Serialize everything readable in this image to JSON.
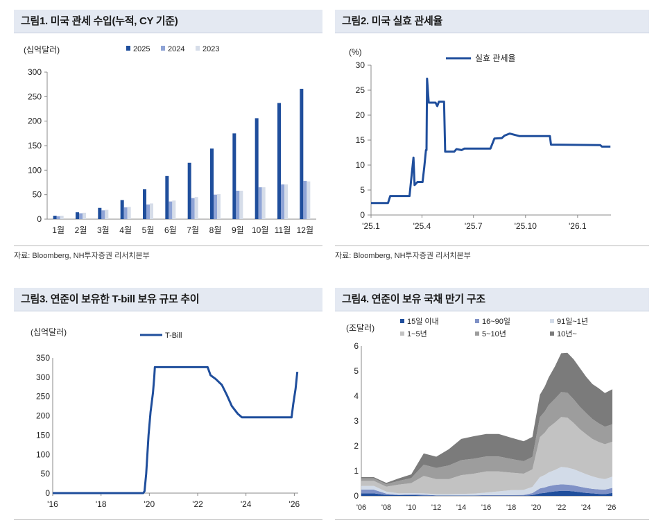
{
  "colors": {
    "dark_blue": "#1f4e9c",
    "mid_blue": "#8fa4d6",
    "light_blue": "#d6dde9",
    "bar_2025": "#1f4e9c",
    "bar_2024": "#8fa4d6",
    "bar_2023": "#d6dde9"
  },
  "fig1": {
    "title": "그림1. 미국 관세 수입(누적, CY 기준)",
    "source": "자료: Bloomberg, NH투자증권 리서치본부",
    "chart_data": {
      "type": "bar",
      "ylabel": "(십억달러)",
      "ylim": [
        0,
        300
      ],
      "yticks": [
        "0",
        "50",
        "100",
        "150",
        "200",
        "250",
        "300"
      ],
      "categories": [
        "1월",
        "2월",
        "3월",
        "4월",
        "5월",
        "6월",
        "7월",
        "8월",
        "9월",
        "10월",
        "11월",
        "12월"
      ],
      "series": [
        {
          "name": "2025",
          "values": [
            7,
            14,
            23,
            39,
            61,
            88,
            115,
            144,
            175,
            206,
            237,
            266
          ]
        },
        {
          "name": "2024",
          "values": [
            6,
            12,
            18,
            24,
            30,
            36,
            43,
            50,
            58,
            65,
            71,
            78
          ]
        },
        {
          "name": "2023",
          "values": [
            7,
            13,
            19,
            25,
            32,
            38,
            45,
            51,
            58,
            65,
            71,
            77
          ]
        }
      ],
      "legend": "top-center"
    }
  },
  "fig2": {
    "title": "그림2. 미국 실효 관세율",
    "source": "자료: Bloomberg, NH투자증권 리서치본부",
    "chart_data": {
      "type": "line",
      "ylabel": "(%)",
      "ylim": [
        0,
        30
      ],
      "yticks": [
        "0",
        "5",
        "10",
        "15",
        "20",
        "25",
        "30"
      ],
      "xticks": [
        "'25.1",
        "'25.4",
        "'25.7",
        "'25.10",
        "'26.1"
      ],
      "xlim": [
        "2025-01-01",
        "2026-03-01"
      ],
      "series": [
        {
          "name": "실효 관세율",
          "points": [
            [
              "2025-01-01",
              2.4
            ],
            [
              "2025-01-31",
              2.4
            ],
            [
              "2025-02-04",
              3.8
            ],
            [
              "2025-03-10",
              3.8
            ],
            [
              "2025-03-12",
              6.0
            ],
            [
              "2025-03-17",
              11.5
            ],
            [
              "2025-03-19",
              6.0
            ],
            [
              "2025-03-24",
              6.6
            ],
            [
              "2025-04-02",
              6.6
            ],
            [
              "2025-04-05",
              9.5
            ],
            [
              "2025-04-08",
              13.0
            ],
            [
              "2025-04-09",
              13.0
            ],
            [
              "2025-04-10",
              27.3
            ],
            [
              "2025-04-13",
              22.5
            ],
            [
              "2025-04-25",
              22.5
            ],
            [
              "2025-04-28",
              21.8
            ],
            [
              "2025-05-01",
              22.7
            ],
            [
              "2025-05-10",
              22.7
            ],
            [
              "2025-05-12",
              12.7
            ],
            [
              "2025-05-28",
              12.7
            ],
            [
              "2025-06-01",
              13.2
            ],
            [
              "2025-06-10",
              13.0
            ],
            [
              "2025-06-15",
              13.3
            ],
            [
              "2025-07-31",
              13.3
            ],
            [
              "2025-08-07",
              15.3
            ],
            [
              "2025-08-20",
              15.4
            ],
            [
              "2025-08-25",
              15.9
            ],
            [
              "2025-09-03",
              16.3
            ],
            [
              "2025-09-10",
              16.1
            ],
            [
              "2025-09-20",
              15.8
            ],
            [
              "2025-11-13",
              15.8
            ],
            [
              "2025-11-15",
              14.1
            ],
            [
              "2026-02-10",
              14.0
            ],
            [
              "2026-02-13",
              13.7
            ],
            [
              "2026-02-28",
              13.7
            ]
          ]
        }
      ],
      "legend": "top-center"
    }
  },
  "fig3": {
    "title": "그림3. 연준이 보유한 T-bill 보유 규모 추이",
    "chart_data": {
      "type": "line",
      "ylabel": "(십억달러)",
      "ylim": [
        0,
        350
      ],
      "yticks": [
        "0",
        "50",
        "100",
        "150",
        "200",
        "250",
        "300",
        "350"
      ],
      "xticks": [
        "'16",
        "'18",
        "'20",
        "'22",
        "'24",
        "'26"
      ],
      "xlim": [
        "2016-01-01",
        "2026-03-01"
      ],
      "series": [
        {
          "name": "T-Bill",
          "points": [
            [
              "2016-01-01",
              0
            ],
            [
              "2019-10-01",
              0
            ],
            [
              "2019-10-20",
              5
            ],
            [
              "2019-11-15",
              50
            ],
            [
              "2019-12-20",
              150
            ],
            [
              "2020-01-20",
              210
            ],
            [
              "2020-02-25",
              260
            ],
            [
              "2020-03-15",
              300
            ],
            [
              "2020-03-25",
              326
            ],
            [
              "2022-06-01",
              326
            ],
            [
              "2022-07-15",
              305
            ],
            [
              "2022-10-01",
              295
            ],
            [
              "2023-01-01",
              280
            ],
            [
              "2023-03-15",
              255
            ],
            [
              "2023-06-01",
              225
            ],
            [
              "2023-09-01",
              205
            ],
            [
              "2023-11-01",
              196
            ],
            [
              "2025-11-20",
              196
            ],
            [
              "2025-12-15",
              230
            ],
            [
              "2026-01-20",
              270
            ],
            [
              "2026-02-15",
              314
            ]
          ]
        }
      ],
      "legend": "top-center"
    }
  },
  "fig4": {
    "title": "그림4. 연준이 보유 국채 만기 구조",
    "chart_data": {
      "type": "area",
      "stacked": true,
      "ylabel": "(조달러)",
      "ylim": [
        0,
        6
      ],
      "yticks": [
        "0",
        "1",
        "2",
        "3",
        "4",
        "5",
        "6"
      ],
      "xticks": [
        "'06",
        "'08",
        "'10",
        "'12",
        "'14",
        "'16",
        "'18",
        "'20",
        "'22",
        "'24",
        "'26"
      ],
      "x": [
        2006,
        2007,
        2008,
        2009,
        2010,
        2011,
        2012,
        2013,
        2014,
        2015,
        2016,
        2017,
        2018,
        2019,
        2019.7,
        2020.3,
        2020.7,
        2021,
        2021.5,
        2022,
        2022.5,
        2023,
        2023.5,
        2024,
        2024.5,
        2025,
        2025.5,
        2026.1
      ],
      "series": [
        {
          "name": "15일 이내",
          "values": [
            0.1,
            0.1,
            0.04,
            0.03,
            0.03,
            0.02,
            0.01,
            0.01,
            0.01,
            0.01,
            0.01,
            0.01,
            0.01,
            0.01,
            0.03,
            0.1,
            0.12,
            0.15,
            0.18,
            0.2,
            0.2,
            0.18,
            0.15,
            0.12,
            0.1,
            0.08,
            0.07,
            0.12
          ]
        },
        {
          "name": "16~90일",
          "values": [
            0.15,
            0.15,
            0.05,
            0.02,
            0.03,
            0.03,
            0.01,
            0.01,
            0.01,
            0.01,
            0.02,
            0.02,
            0.02,
            0.03,
            0.08,
            0.2,
            0.22,
            0.24,
            0.26,
            0.26,
            0.25,
            0.24,
            0.22,
            0.2,
            0.18,
            0.18,
            0.18,
            0.2
          ]
        },
        {
          "name": "91일~1년",
          "values": [
            0.15,
            0.15,
            0.08,
            0.05,
            0.05,
            0.05,
            0.05,
            0.05,
            0.06,
            0.07,
            0.1,
            0.15,
            0.2,
            0.2,
            0.25,
            0.45,
            0.5,
            0.55,
            0.6,
            0.7,
            0.68,
            0.65,
            0.6,
            0.55,
            0.5,
            0.45,
            0.42,
            0.45
          ]
        },
        {
          "name": "1~5년",
          "values": [
            0.2,
            0.2,
            0.2,
            0.35,
            0.4,
            0.7,
            0.6,
            0.6,
            0.75,
            0.8,
            0.85,
            0.8,
            0.7,
            0.65,
            0.7,
            1.6,
            1.7,
            1.8,
            1.9,
            2.0,
            2.0,
            1.85,
            1.7,
            1.6,
            1.5,
            1.45,
            1.4,
            1.4
          ]
        },
        {
          "name": "5~10년",
          "values": [
            0.1,
            0.1,
            0.1,
            0.15,
            0.2,
            0.45,
            0.45,
            0.55,
            0.6,
            0.6,
            0.6,
            0.6,
            0.55,
            0.5,
            0.5,
            0.8,
            0.85,
            0.9,
            0.95,
            1.0,
            1.0,
            0.95,
            0.9,
            0.85,
            0.8,
            0.75,
            0.7,
            0.7
          ]
        },
        {
          "name": "10년~",
          "values": [
            0.05,
            0.05,
            0.05,
            0.1,
            0.15,
            0.45,
            0.45,
            0.65,
            0.85,
            0.9,
            0.9,
            0.9,
            0.85,
            0.8,
            0.8,
            0.9,
            1.0,
            1.1,
            1.3,
            1.55,
            1.6,
            1.6,
            1.55,
            1.45,
            1.4,
            1.4,
            1.35,
            1.4
          ]
        }
      ],
      "legend": "top"
    }
  }
}
